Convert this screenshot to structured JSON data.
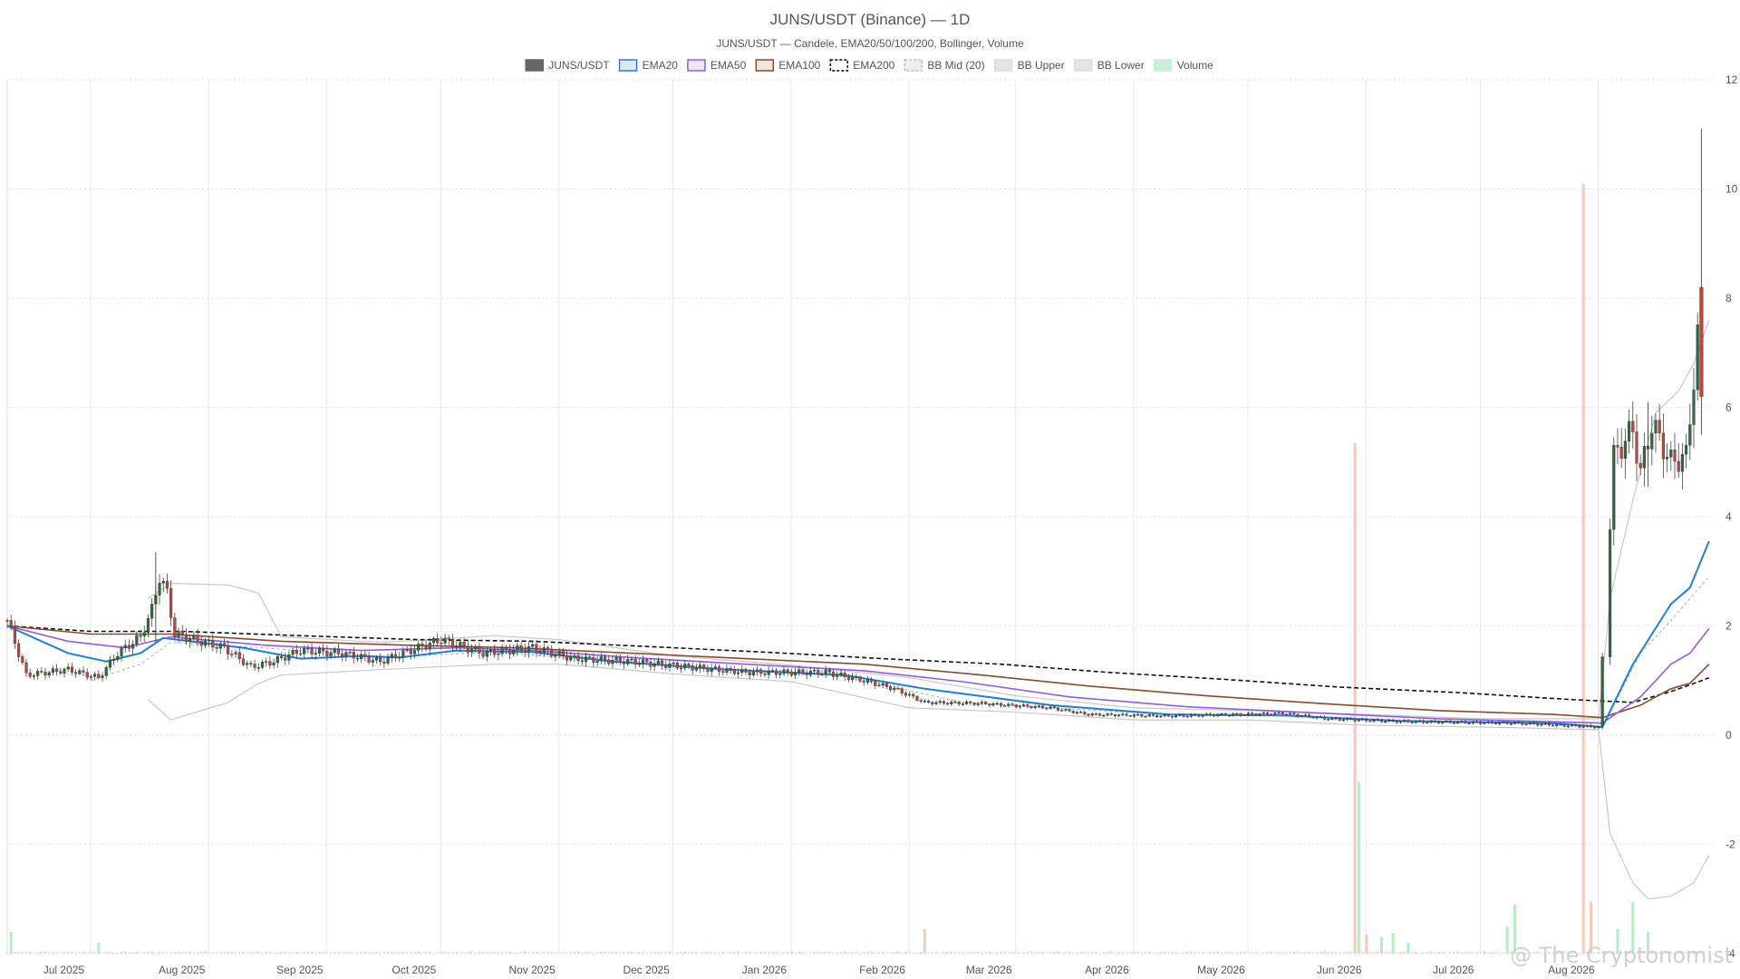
{
  "chart_data": {
    "type": "candlestick",
    "title": "JUNS/USDT (Binance) — 1D",
    "subtitle": "JUNS/USDT — Candele, EMA20/50/100/200, Bollinger, Volume",
    "legend": [
      {
        "name": "JUNS/USDT",
        "fill": "#666666",
        "stroke": "#666666",
        "dashed": false
      },
      {
        "name": "EMA20",
        "fill": "#dcebf8",
        "stroke": "#1e7fd8",
        "dashed": false
      },
      {
        "name": "EMA50",
        "fill": "#eee6fb",
        "stroke": "#8e5ce6",
        "dashed": false
      },
      {
        "name": "EMA100",
        "fill": "#f5e6dc",
        "stroke": "#8b4a2b",
        "dashed": false
      },
      {
        "name": "EMA200",
        "fill": "#ffffff",
        "stroke": "#000000",
        "dashed": true
      },
      {
        "name": "BB Mid (20)",
        "fill": "#eeeeee",
        "stroke": "#bbbbbb",
        "dashed": true
      },
      {
        "name": "BB Upper",
        "fill": "#e4e4e4",
        "stroke": "#dddddd",
        "dashed": false
      },
      {
        "name": "BB Lower",
        "fill": "#e4e4e4",
        "stroke": "#dddddd",
        "dashed": false
      },
      {
        "name": "Volume",
        "fill": "#c9f0d6",
        "stroke": "#c9f0d6",
        "dashed": false
      }
    ],
    "legend_position": "top-center",
    "y_axis": {
      "position": "right",
      "min": -4,
      "max": 12,
      "ticks": [
        -4,
        -2,
        0,
        2,
        4,
        6,
        8,
        10,
        12
      ],
      "tick_labels": [
        "-4",
        "-2",
        "0",
        "2",
        "4",
        "6",
        "8",
        "10",
        "12"
      ]
    },
    "x_axis": {
      "start": "2025-06-09",
      "end": "2026-08-31",
      "ticks": [
        {
          "date": "2025-07-01",
          "label": "Jul 2025"
        },
        {
          "date": "2025-08-01",
          "label": "Aug 2025"
        },
        {
          "date": "2025-09-01",
          "label": "Sep 2025"
        },
        {
          "date": "2025-10-01",
          "label": "Oct 2025"
        },
        {
          "date": "2025-11-01",
          "label": "Nov 2025"
        },
        {
          "date": "2025-12-01",
          "label": "Dec 2025"
        },
        {
          "date": "2026-01-01",
          "label": "Jan 2026"
        },
        {
          "date": "2026-02-01",
          "label": "Feb 2026"
        },
        {
          "date": "2026-03-01",
          "label": "Mar 2026"
        },
        {
          "date": "2026-04-01",
          "label": "Apr 2026"
        },
        {
          "date": "2026-05-01",
          "label": "May 2026"
        },
        {
          "date": "2026-06-01",
          "label": "Jun 2026"
        },
        {
          "date": "2026-07-01",
          "label": "Jul 2026"
        },
        {
          "date": "2026-08-01",
          "label": "Aug 2026"
        }
      ]
    },
    "grid": true,
    "price_key_points": [
      [
        "2025-06-09",
        2.1
      ],
      [
        "2025-06-14",
        1.1
      ],
      [
        "2025-06-25",
        1.2
      ],
      [
        "2025-07-03",
        1.05
      ],
      [
        "2025-07-08",
        1.5
      ],
      [
        "2025-07-14",
        1.8
      ],
      [
        "2025-07-17",
        2.3
      ],
      [
        "2025-07-19",
        2.9
      ],
      [
        "2025-07-21",
        2.6
      ],
      [
        "2025-07-23",
        1.85
      ],
      [
        "2025-08-05",
        1.6
      ],
      [
        "2025-08-12",
        1.25
      ],
      [
        "2025-08-18",
        1.35
      ],
      [
        "2025-08-25",
        1.55
      ],
      [
        "2025-09-05",
        1.5
      ],
      [
        "2025-09-15",
        1.35
      ],
      [
        "2025-09-25",
        1.6
      ],
      [
        "2025-10-01",
        1.75
      ],
      [
        "2025-10-12",
        1.5
      ],
      [
        "2025-10-25",
        1.6
      ],
      [
        "2025-11-05",
        1.4
      ],
      [
        "2025-11-20",
        1.35
      ],
      [
        "2025-12-05",
        1.25
      ],
      [
        "2025-12-20",
        1.15
      ],
      [
        "2026-01-10",
        1.15
      ],
      [
        "2026-01-20",
        1.0
      ],
      [
        "2026-01-28",
        0.85
      ],
      [
        "2026-02-05",
        0.6
      ],
      [
        "2026-02-20",
        0.58
      ],
      [
        "2026-03-10",
        0.5
      ],
      [
        "2026-03-20",
        0.38
      ],
      [
        "2026-04-10",
        0.35
      ],
      [
        "2026-05-10",
        0.4
      ],
      [
        "2026-05-22",
        0.3
      ],
      [
        "2026-06-10",
        0.25
      ],
      [
        "2026-07-10",
        0.22
      ],
      [
        "2026-08-01",
        0.15
      ],
      [
        "2026-08-05",
        5.1
      ],
      [
        "2026-08-10",
        5.6
      ],
      [
        "2026-08-12",
        4.8
      ],
      [
        "2026-08-15",
        5.7
      ],
      [
        "2026-08-20",
        5.0
      ],
      [
        "2026-08-24",
        5.1
      ],
      [
        "2026-08-28",
        8.0
      ]
    ],
    "extra_wicks": [
      {
        "date": "2025-07-18",
        "high": 3.35,
        "low": 1.7
      },
      {
        "date": "2026-08-28",
        "high": 11.1,
        "low": 5.5
      },
      {
        "date": "2026-08-14",
        "high": 6.1,
        "low": 4.55
      }
    ],
    "ema20_points": [
      [
        "2025-06-09",
        2.0
      ],
      [
        "2025-06-25",
        1.5
      ],
      [
        "2025-07-05",
        1.35
      ],
      [
        "2025-07-14",
        1.5
      ],
      [
        "2025-07-20",
        1.78
      ],
      [
        "2025-08-10",
        1.6
      ],
      [
        "2025-08-25",
        1.4
      ],
      [
        "2025-09-10",
        1.45
      ],
      [
        "2025-09-20",
        1.42
      ],
      [
        "2025-10-05",
        1.55
      ],
      [
        "2025-10-25",
        1.52
      ],
      [
        "2025-11-15",
        1.35
      ],
      [
        "2025-12-15",
        1.2
      ],
      [
        "2026-01-15",
        1.1
      ],
      [
        "2026-02-05",
        0.85
      ],
      [
        "2026-03-10",
        0.55
      ],
      [
        "2026-04-10",
        0.38
      ],
      [
        "2026-05-10",
        0.36
      ],
      [
        "2026-06-10",
        0.26
      ],
      [
        "2026-07-20",
        0.22
      ],
      [
        "2026-08-02",
        0.15
      ],
      [
        "2026-08-10",
        1.3
      ],
      [
        "2026-08-20",
        2.4
      ],
      [
        "2026-08-25",
        2.7
      ],
      [
        "2026-08-30",
        3.55
      ]
    ],
    "ema50_points": [
      [
        "2025-06-09",
        2.0
      ],
      [
        "2025-06-25",
        1.72
      ],
      [
        "2025-07-10",
        1.6
      ],
      [
        "2025-07-22",
        1.8
      ],
      [
        "2025-08-15",
        1.65
      ],
      [
        "2025-09-10",
        1.55
      ],
      [
        "2025-10-05",
        1.6
      ],
      [
        "2025-10-25",
        1.55
      ],
      [
        "2025-11-20",
        1.42
      ],
      [
        "2025-12-20",
        1.3
      ],
      [
        "2026-01-20",
        1.18
      ],
      [
        "2026-02-15",
        0.98
      ],
      [
        "2026-03-15",
        0.7
      ],
      [
        "2026-04-15",
        0.52
      ],
      [
        "2026-05-15",
        0.42
      ],
      [
        "2026-06-20",
        0.3
      ],
      [
        "2026-08-02",
        0.22
      ],
      [
        "2026-08-12",
        0.7
      ],
      [
        "2026-08-20",
        1.3
      ],
      [
        "2026-08-25",
        1.5
      ],
      [
        "2026-08-30",
        1.95
      ]
    ],
    "ema100_points": [
      [
        "2025-06-09",
        2.0
      ],
      [
        "2025-07-01",
        1.85
      ],
      [
        "2025-07-22",
        1.85
      ],
      [
        "2025-08-20",
        1.72
      ],
      [
        "2025-09-20",
        1.65
      ],
      [
        "2025-10-20",
        1.6
      ],
      [
        "2025-11-20",
        1.5
      ],
      [
        "2025-12-20",
        1.4
      ],
      [
        "2026-01-20",
        1.3
      ],
      [
        "2026-02-20",
        1.1
      ],
      [
        "2026-03-20",
        0.9
      ],
      [
        "2026-04-20",
        0.72
      ],
      [
        "2026-05-20",
        0.58
      ],
      [
        "2026-06-20",
        0.45
      ],
      [
        "2026-07-20",
        0.38
      ],
      [
        "2026-08-02",
        0.32
      ],
      [
        "2026-08-12",
        0.55
      ],
      [
        "2026-08-20",
        0.85
      ],
      [
        "2026-08-25",
        0.95
      ],
      [
        "2026-08-30",
        1.3
      ]
    ],
    "ema200_points": [
      [
        "2025-06-09",
        2.0
      ],
      [
        "2025-07-01",
        1.9
      ],
      [
        "2025-07-25",
        1.9
      ],
      [
        "2025-08-25",
        1.82
      ],
      [
        "2025-09-25",
        1.75
      ],
      [
        "2025-10-25",
        1.72
      ],
      [
        "2025-11-25",
        1.62
      ],
      [
        "2025-12-25",
        1.52
      ],
      [
        "2026-01-25",
        1.4
      ],
      [
        "2026-02-25",
        1.3
      ],
      [
        "2026-03-25",
        1.15
      ],
      [
        "2026-04-25",
        1.02
      ],
      [
        "2026-05-25",
        0.88
      ],
      [
        "2026-06-25",
        0.78
      ],
      [
        "2026-07-25",
        0.65
      ],
      [
        "2026-08-10",
        0.6
      ],
      [
        "2026-08-20",
        0.8
      ],
      [
        "2026-08-25",
        0.92
      ],
      [
        "2026-08-30",
        1.05
      ]
    ],
    "bb_mid_points": [
      [
        "2025-07-01",
        1.0
      ],
      [
        "2025-07-14",
        1.3
      ],
      [
        "2025-07-22",
        1.7
      ],
      [
        "2025-08-15",
        1.6
      ],
      [
        "2025-09-15",
        1.42
      ],
      [
        "2025-10-15",
        1.52
      ],
      [
        "2025-11-15",
        1.35
      ],
      [
        "2025-12-15",
        1.2
      ],
      [
        "2026-01-15",
        1.08
      ],
      [
        "2026-02-15",
        0.6
      ],
      [
        "2026-03-15",
        0.48
      ],
      [
        "2026-04-15",
        0.36
      ],
      [
        "2026-05-15",
        0.35
      ],
      [
        "2026-06-15",
        0.26
      ],
      [
        "2026-07-15",
        0.22
      ],
      [
        "2026-08-02",
        0.15
      ],
      [
        "2026-08-12",
        1.5
      ],
      [
        "2026-08-20",
        2.1
      ],
      [
        "2026-08-30",
        2.9
      ]
    ],
    "bb_upper_points": [
      [
        "2025-07-16",
        2.5
      ],
      [
        "2025-07-22",
        2.78
      ],
      [
        "2025-08-06",
        2.75
      ],
      [
        "2025-08-14",
        2.6
      ],
      [
        "2025-08-20",
        1.8
      ],
      [
        "2025-09-15",
        1.7
      ],
      [
        "2025-10-15",
        1.82
      ],
      [
        "2025-11-01",
        1.75
      ],
      [
        "2025-12-01",
        1.45
      ],
      [
        "2026-01-01",
        1.28
      ],
      [
        "2026-02-01",
        1.05
      ],
      [
        "2026-03-01",
        0.72
      ],
      [
        "2026-04-01",
        0.5
      ],
      [
        "2026-05-01",
        0.45
      ],
      [
        "2026-06-01",
        0.38
      ],
      [
        "2026-07-01",
        0.3
      ],
      [
        "2026-08-01",
        0.3
      ],
      [
        "2026-08-04",
        2.5
      ],
      [
        "2026-08-10",
        4.3
      ],
      [
        "2026-08-16",
        5.9
      ],
      [
        "2026-08-22",
        6.3
      ],
      [
        "2026-08-26",
        6.8
      ],
      [
        "2026-08-30",
        7.6
      ]
    ],
    "bb_lower_points": [
      [
        "2025-07-16",
        0.65
      ],
      [
        "2025-07-22",
        0.28
      ],
      [
        "2025-08-06",
        0.6
      ],
      [
        "2025-08-14",
        0.95
      ],
      [
        "2025-08-20",
        1.1
      ],
      [
        "2025-09-15",
        1.2
      ],
      [
        "2025-10-15",
        1.3
      ],
      [
        "2025-11-01",
        1.3
      ],
      [
        "2025-12-01",
        1.12
      ],
      [
        "2026-01-01",
        0.98
      ],
      [
        "2026-02-01",
        0.5
      ],
      [
        "2026-03-01",
        0.42
      ],
      [
        "2026-04-01",
        0.28
      ],
      [
        "2026-05-01",
        0.28
      ],
      [
        "2026-06-01",
        0.18
      ],
      [
        "2026-07-01",
        0.15
      ],
      [
        "2026-08-01",
        0.1
      ],
      [
        "2026-08-04",
        -1.8
      ],
      [
        "2026-08-10",
        -2.7
      ],
      [
        "2026-08-14",
        -3.0
      ],
      [
        "2026-08-20",
        -2.95
      ],
      [
        "2026-08-26",
        -2.7
      ],
      [
        "2026-08-30",
        -2.2
      ]
    ],
    "volume_spikes": [
      {
        "date": "2025-06-10",
        "top": -3.6,
        "color": "#b8ecc8"
      },
      {
        "date": "2025-07-03",
        "top": -3.8,
        "color": "#b8ecc8"
      },
      {
        "date": "2026-02-05",
        "top": -3.55,
        "color": "#f8c9bd"
      },
      {
        "date": "2026-05-29",
        "top": 5.35,
        "color": "#f8c9bd"
      },
      {
        "date": "2026-05-30",
        "top": -0.85,
        "color": "#b8ecc8"
      },
      {
        "date": "2026-06-01",
        "top": -3.65,
        "color": "#f8c9bd"
      },
      {
        "date": "2026-06-05",
        "top": -3.7,
        "color": "#b8ecc8"
      },
      {
        "date": "2026-06-08",
        "top": -3.62,
        "color": "#b8ecc8"
      },
      {
        "date": "2026-06-12",
        "top": -3.8,
        "color": "#b8ecc8"
      },
      {
        "date": "2026-07-08",
        "top": -3.5,
        "color": "#b8ecc8"
      },
      {
        "date": "2026-07-10",
        "top": -3.1,
        "color": "#b8ecc8"
      },
      {
        "date": "2026-07-28",
        "top": 10.1,
        "color": "#f8c9bd"
      },
      {
        "date": "2026-07-30",
        "top": -3.05,
        "color": "#f8c9bd"
      },
      {
        "date": "2026-08-06",
        "top": -3.55,
        "color": "#b8ecc8"
      },
      {
        "date": "2026-08-10",
        "top": -3.05,
        "color": "#b8ecc8"
      },
      {
        "date": "2026-08-14",
        "top": -3.6,
        "color": "#b8ecc8"
      }
    ],
    "up_color": "#2f6b40",
    "down_color": "#b9493d",
    "watermark": "@ The Cryptonomist"
  }
}
